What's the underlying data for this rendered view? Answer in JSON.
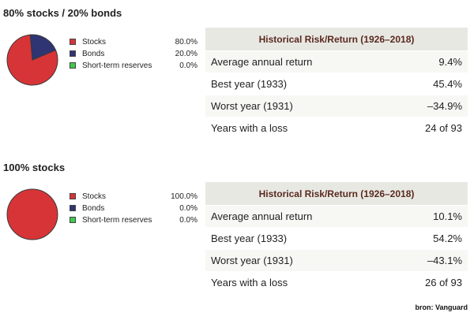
{
  "legend_labels": {
    "stocks": "Stocks",
    "bonds": "Bonds",
    "reserves": "Short-term reserves"
  },
  "colors": {
    "stocks": "#d73437",
    "bonds": "#2e3572",
    "reserves": "#3ec94d",
    "table_header_bg": "#e8e8e3",
    "table_header_text": "#5a2a1e"
  },
  "portfolios": [
    {
      "title": "80% stocks / 20% bonds",
      "allocation_text": {
        "stocks": "80.0%",
        "bonds": "20.0%",
        "reserves": "0.0%"
      },
      "table": {
        "header": "Historical Risk/Return (1926–2018)",
        "rows": [
          {
            "label": "Average annual return",
            "value": "9.4%"
          },
          {
            "label": "Best year (1933)",
            "value": "45.4%"
          },
          {
            "label": "Worst year (1931)",
            "value": "–34.9%"
          },
          {
            "label": "Years with a loss",
            "value": "24 of 93"
          }
        ]
      }
    },
    {
      "title": "100% stocks",
      "allocation_text": {
        "stocks": "100.0%",
        "bonds": "0.0%",
        "reserves": "0.0%"
      },
      "table": {
        "header": "Historical Risk/Return (1926–2018)",
        "rows": [
          {
            "label": "Average annual return",
            "value": "10.1%"
          },
          {
            "label": "Best year (1933)",
            "value": "54.2%"
          },
          {
            "label": "Worst year (1931)",
            "value": "–43.1%"
          },
          {
            "label": "Years with a loss",
            "value": "26 of 93"
          }
        ]
      }
    }
  ],
  "chart_data": [
    {
      "type": "pie",
      "title": "80% stocks / 20% bonds",
      "categories": [
        "Stocks",
        "Bonds",
        "Short-term reserves"
      ],
      "values": [
        80.0,
        20.0,
        0.0
      ],
      "colors": [
        "#d73437",
        "#2e3572",
        "#3ec94d"
      ]
    },
    {
      "type": "pie",
      "title": "100% stocks",
      "categories": [
        "Stocks",
        "Bonds",
        "Short-term reserves"
      ],
      "values": [
        100.0,
        0.0,
        0.0
      ],
      "colors": [
        "#d73437",
        "#2e3572",
        "#3ec94d"
      ]
    }
  ],
  "source": "bron: Vanguard"
}
